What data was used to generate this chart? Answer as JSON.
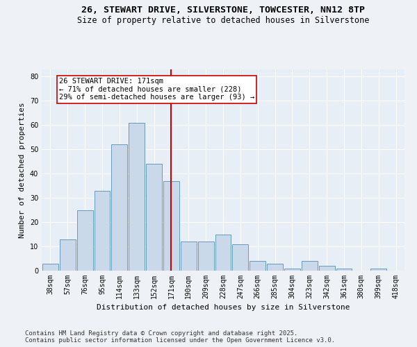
{
  "title_line1": "26, STEWART DRIVE, SILVERSTONE, TOWCESTER, NN12 8TP",
  "title_line2": "Size of property relative to detached houses in Silverstone",
  "xlabel": "Distribution of detached houses by size in Silverstone",
  "ylabel": "Number of detached properties",
  "bar_labels": [
    "38sqm",
    "57sqm",
    "76sqm",
    "95sqm",
    "114sqm",
    "133sqm",
    "152sqm",
    "171sqm",
    "190sqm",
    "209sqm",
    "228sqm",
    "247sqm",
    "266sqm",
    "285sqm",
    "304sqm",
    "323sqm",
    "342sqm",
    "361sqm",
    "380sqm",
    "399sqm",
    "418sqm"
  ],
  "bar_values": [
    3,
    13,
    25,
    33,
    52,
    61,
    44,
    37,
    12,
    12,
    15,
    11,
    4,
    3,
    1,
    4,
    2,
    1,
    0,
    1,
    0
  ],
  "bar_color": "#c9d9ea",
  "bar_edge_color": "#6699bb",
  "vline_x_idx": 7,
  "vline_color": "#cc0000",
  "annotation_line1": "26 STEWART DRIVE: 171sqm",
  "annotation_line2": "← 71% of detached houses are smaller (228)",
  "annotation_line3": "29% of semi-detached houses are larger (93) →",
  "ylim": [
    0,
    83
  ],
  "yticks": [
    0,
    10,
    20,
    30,
    40,
    50,
    60,
    70,
    80
  ],
  "background_color": "#eef2f7",
  "plot_background": "#e8eef5",
  "grid_color": "#ffffff",
  "footer_line1": "Contains HM Land Registry data © Crown copyright and database right 2025.",
  "footer_line2": "Contains public sector information licensed under the Open Government Licence v3.0.",
  "title_fontsize": 9.5,
  "subtitle_fontsize": 8.5,
  "annotation_fontsize": 7.5,
  "footer_fontsize": 6.5,
  "axis_label_fontsize": 8,
  "tick_fontsize": 7
}
